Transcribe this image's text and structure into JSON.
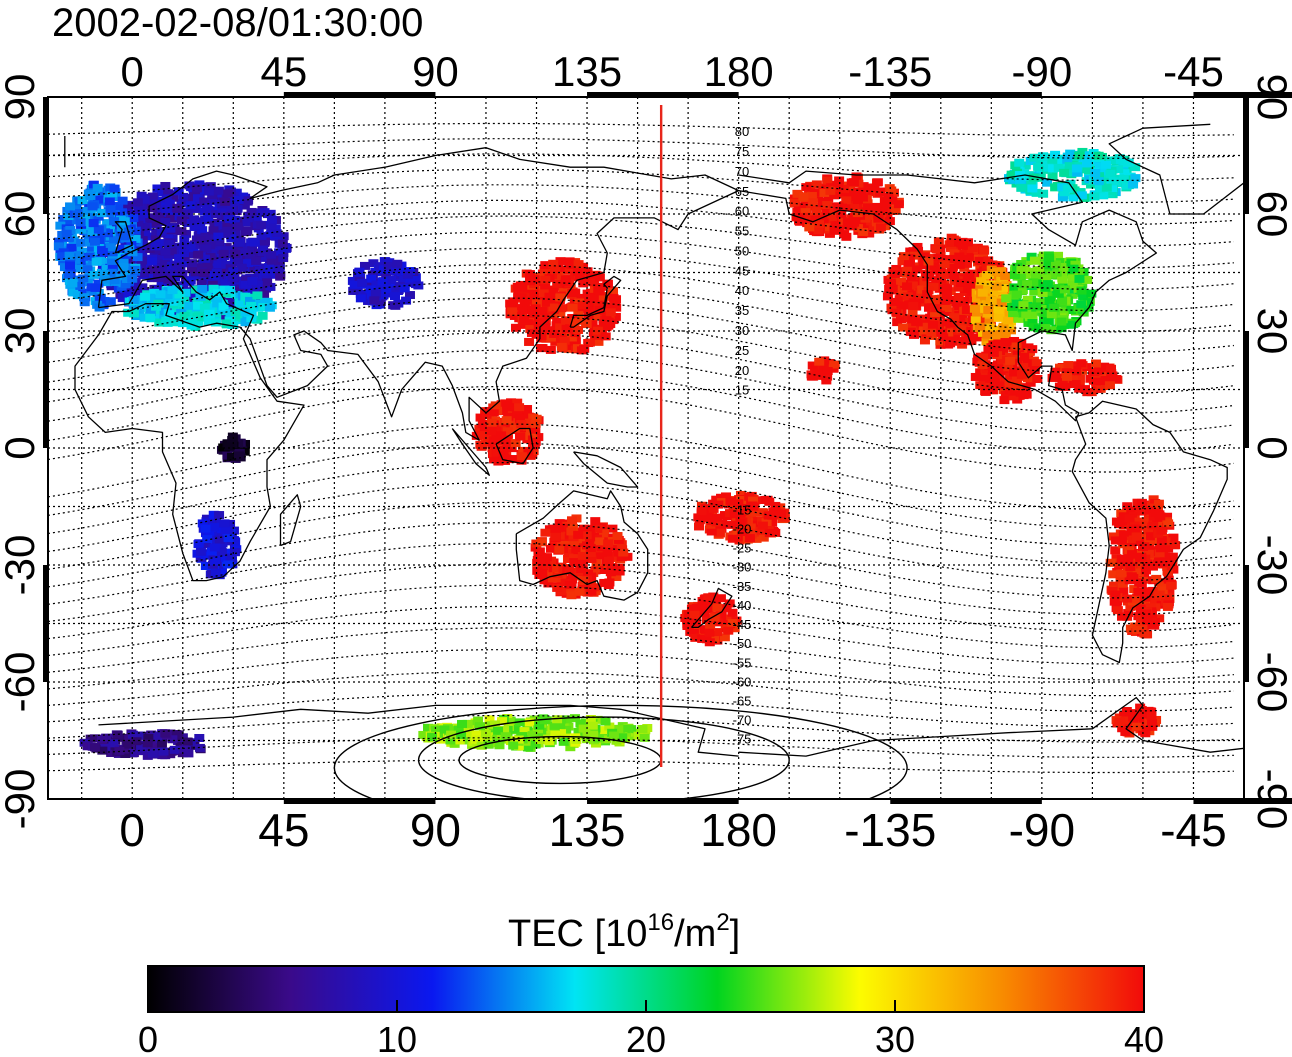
{
  "title": "2002-02-08/01:30:00",
  "map": {
    "lon_range": [
      -25,
      330
    ],
    "lat_range": [
      -90,
      90
    ],
    "lon_ticks": [
      0,
      45,
      90,
      135,
      180,
      225,
      270,
      315
    ],
    "lon_tick_labels": [
      "0",
      "45",
      "90",
      "135",
      "180",
      "-135",
      "-90",
      "-45"
    ],
    "lat_ticks": [
      90,
      60,
      30,
      0,
      -30,
      -60,
      -90
    ],
    "lat_tick_labels": [
      "90",
      "60",
      "30",
      "0",
      "-30",
      "-60",
      "-90"
    ],
    "grid": "dotted-15deg",
    "terminator_lon": 157,
    "terminator_color": "#e8261b",
    "contour_labels": [
      "80",
      "75",
      "70",
      "65",
      "60",
      "55",
      "50",
      "45",
      "40",
      "35",
      "30",
      "25",
      "20",
      "15",
      "-15",
      "-20",
      "-25",
      "-30",
      "-35",
      "-40",
      "-45",
      "-50",
      "-55",
      "-60",
      "-65",
      "-70",
      "-75"
    ]
  },
  "colorbar": {
    "title_main": "TEC  [10",
    "title_exp1": "16",
    "title_mid": "/m",
    "title_exp2": "2",
    "title_end": "]",
    "min": 0,
    "max": 40,
    "ticks": [
      0,
      10,
      20,
      30,
      40
    ],
    "tick_labels": [
      "0",
      "10",
      "20",
      "30",
      "40"
    ],
    "stops": [
      "#000000",
      "#3a0a8a",
      "#0a18f0",
      "#00e4f4",
      "#00d420",
      "#fcfc00",
      "#f88c00",
      "#f20a0a"
    ]
  },
  "regions": [
    {
      "name": "europe",
      "lon": 18,
      "lat": 50,
      "rx": 28,
      "ry": 18,
      "tec": 8
    },
    {
      "name": "europe-west",
      "lon": -10,
      "lat": 52,
      "rx": 12,
      "ry": 16,
      "tec": 14
    },
    {
      "name": "europe-south",
      "lon": 20,
      "lat": 36,
      "rx": 22,
      "ry": 5,
      "tec": 17
    },
    {
      "name": "central-asia",
      "lon": 75,
      "lat": 42,
      "rx": 10,
      "ry": 6,
      "tec": 9
    },
    {
      "name": "east-asia",
      "lon": 128,
      "lat": 36,
      "rx": 16,
      "ry": 12,
      "tec": 40
    },
    {
      "name": "southeast-asia",
      "lon": 112,
      "lat": 4,
      "rx": 10,
      "ry": 8,
      "tec": 40
    },
    {
      "name": "australia",
      "lon": 133,
      "lat": -28,
      "rx": 14,
      "ry": 10,
      "tec": 40
    },
    {
      "name": "new-zealand",
      "lon": 172,
      "lat": -44,
      "rx": 8,
      "ry": 6,
      "tec": 40
    },
    {
      "name": "pacific-islands",
      "lon": 180,
      "lat": -18,
      "rx": 14,
      "ry": 6,
      "tec": 40
    },
    {
      "name": "hawaii",
      "lon": 205,
      "lat": 20,
      "rx": 4,
      "ry": 3,
      "tec": 40
    },
    {
      "name": "alaska",
      "lon": 212,
      "lat": 62,
      "rx": 16,
      "ry": 8,
      "tec": 40
    },
    {
      "name": "north-america-west",
      "lon": 242,
      "lat": 40,
      "rx": 18,
      "ry": 14,
      "tec": 40
    },
    {
      "name": "north-america-central",
      "lon": 256,
      "lat": 36,
      "rx": 6,
      "ry": 10,
      "tec": 33
    },
    {
      "name": "north-america-east",
      "lon": 272,
      "lat": 40,
      "rx": 13,
      "ry": 10,
      "tec": 24
    },
    {
      "name": "central-america",
      "lon": 260,
      "lat": 20,
      "rx": 10,
      "ry": 8,
      "tec": 40
    },
    {
      "name": "caribbean",
      "lon": 283,
      "lat": 18,
      "rx": 10,
      "ry": 4,
      "tec": 40
    },
    {
      "name": "south-america",
      "lon": 300,
      "lat": -30,
      "rx": 10,
      "ry": 18,
      "tec": 40
    },
    {
      "name": "antarctica-peninsula",
      "lon": 298,
      "lat": -70,
      "rx": 6,
      "ry": 4,
      "tec": 40
    },
    {
      "name": "antarctica-east",
      "lon": 120,
      "lat": -73,
      "rx": 35,
      "ry": 4,
      "tec": 26
    },
    {
      "name": "antarctica-west",
      "lon": 5,
      "lat": -76,
      "rx": 20,
      "ry": 3,
      "tec": 6
    },
    {
      "name": "africa-south",
      "lon": 25,
      "lat": -25,
      "rx": 6,
      "ry": 8,
      "tec": 10
    },
    {
      "name": "africa-east",
      "lon": 30,
      "lat": 0,
      "rx": 4,
      "ry": 3,
      "tec": 2
    },
    {
      "name": "arctic-canada",
      "lon": 280,
      "lat": 70,
      "rx": 20,
      "ry": 6,
      "tec": 18
    }
  ]
}
